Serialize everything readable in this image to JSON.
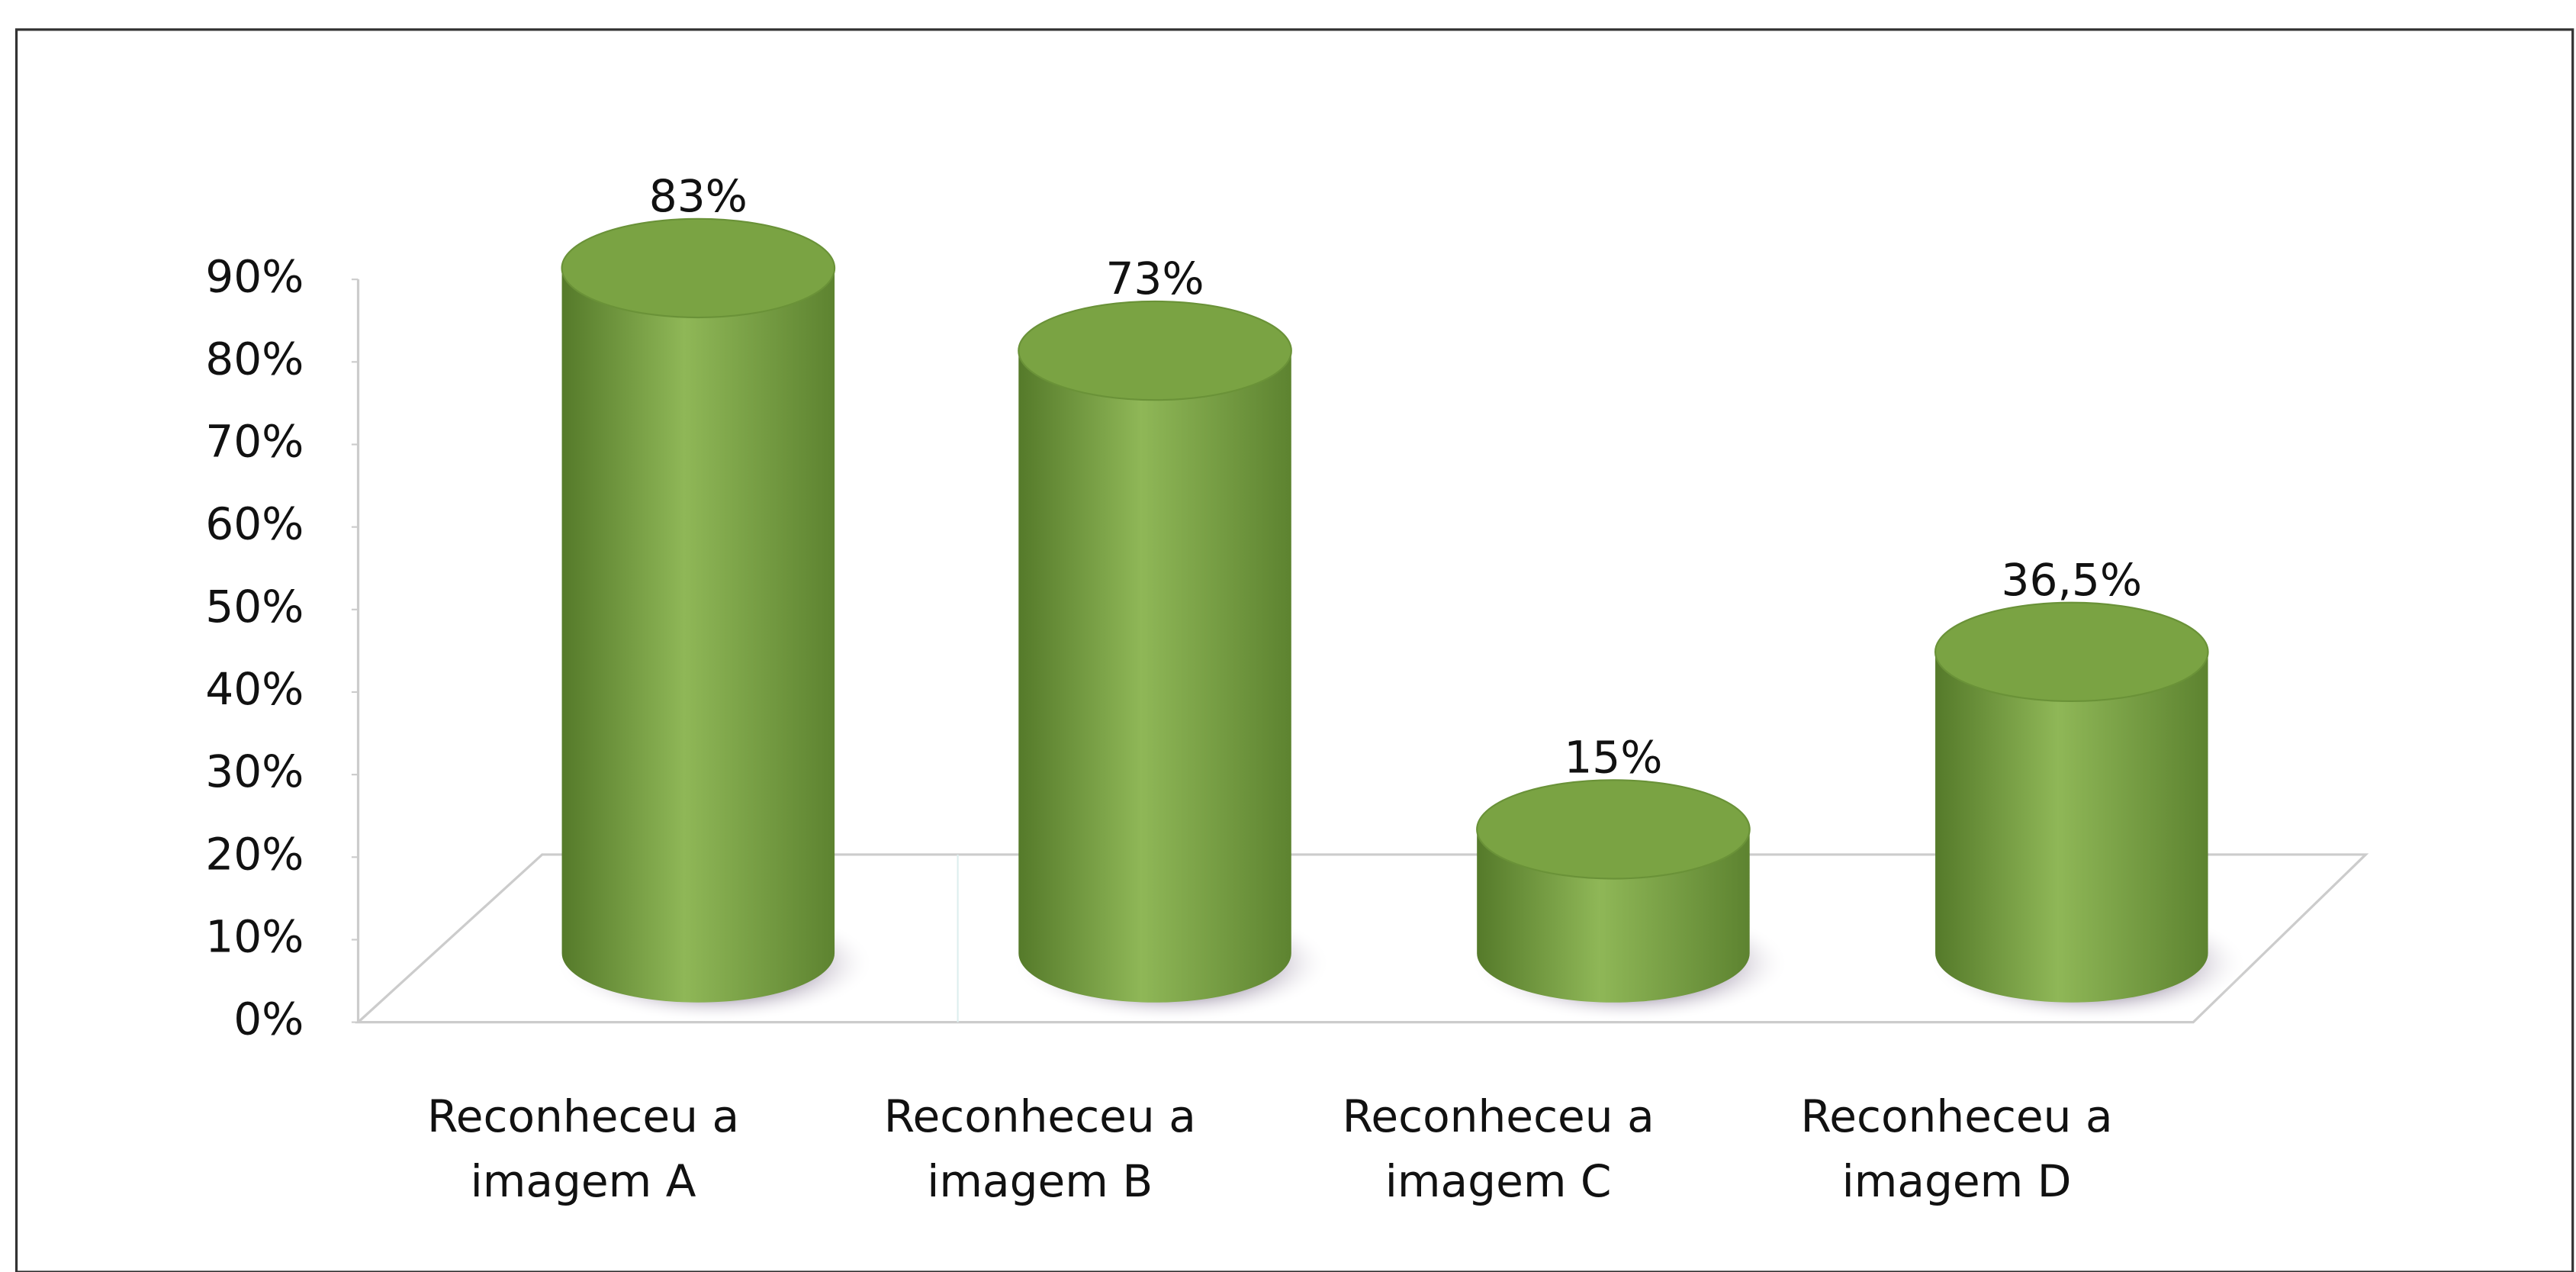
{
  "chart_data": {
    "type": "bar",
    "categories": [
      "Reconheceu a imagem A",
      "Reconheceu a imagem B",
      "Reconheceu a imagem C",
      "Reconheceu a imagem D"
    ],
    "values": [
      83,
      73,
      15,
      36.5
    ],
    "value_labels": [
      "83%",
      "73%",
      "15%",
      "36,5%"
    ],
    "color": "#7aa343",
    "ylim": [
      0,
      90
    ],
    "yticks": [
      {
        "value": 0,
        "label": "0%"
      },
      {
        "value": 10,
        "label": "10%"
      },
      {
        "value": 20,
        "label": "20%"
      },
      {
        "value": 30,
        "label": "30%"
      },
      {
        "value": 40,
        "label": "40%"
      },
      {
        "value": 50,
        "label": "50%"
      },
      {
        "value": 60,
        "label": "60%"
      },
      {
        "value": 70,
        "label": "70%"
      },
      {
        "value": 80,
        "label": "80%"
      },
      {
        "value": 90,
        "label": "90%"
      }
    ]
  }
}
